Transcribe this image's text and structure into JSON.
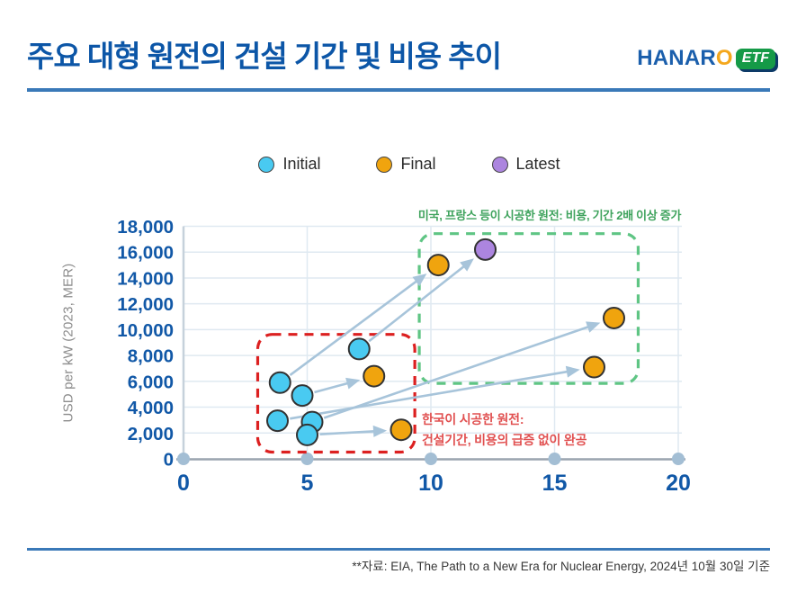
{
  "header": {
    "title": "주요 대형 원전의 건설 기간 및 비용 추이",
    "logo": {
      "brand_prefix": "HANAR",
      "brand_suffix": "O",
      "badge": "ETF"
    }
  },
  "legend": {
    "items": [
      {
        "label": "Initial",
        "color": "#49CAF1"
      },
      {
        "label": "Final",
        "color": "#F0A40E"
      },
      {
        "label": "Latest",
        "color": "#AC85DF"
      }
    ]
  },
  "chart_data": {
    "type": "scatter",
    "title": "",
    "xlabel": "",
    "ylabel": "USD per kW (2023, MER)",
    "xlim": [
      0,
      20
    ],
    "ylim": [
      0,
      18000
    ],
    "x_ticks": [
      0,
      5,
      10,
      15,
      20
    ],
    "y_ticks": [
      0,
      2000,
      4000,
      6000,
      8000,
      10000,
      12000,
      14000,
      16000,
      18000
    ],
    "grid": true,
    "legend_position": "top-center",
    "series": [
      {
        "name": "Initial",
        "color": "#49CAF1",
        "points": [
          [
            3.9,
            5900
          ],
          [
            4.8,
            4900
          ],
          [
            3.8,
            2950
          ],
          [
            5.2,
            2850
          ],
          [
            5.0,
            1850
          ],
          [
            7.1,
            8500
          ]
        ]
      },
      {
        "name": "Final",
        "color": "#F0A40E",
        "points": [
          [
            7.7,
            6400
          ],
          [
            8.8,
            2250
          ],
          [
            10.3,
            15000
          ],
          [
            16.6,
            7100
          ],
          [
            17.4,
            10900
          ]
        ]
      },
      {
        "name": "Latest",
        "color": "#AC85DF",
        "points": [
          [
            12.2,
            16200
          ]
        ]
      }
    ],
    "arrows": [
      {
        "from": [
          3.9,
          5900
        ],
        "to": [
          10.3,
          15000
        ]
      },
      {
        "from": [
          7.1,
          8500
        ],
        "to": [
          12.2,
          16200
        ]
      },
      {
        "from": [
          4.8,
          4900
        ],
        "to": [
          7.7,
          6400
        ]
      },
      {
        "from": [
          5.2,
          2850
        ],
        "to": [
          17.4,
          10900
        ]
      },
      {
        "from": [
          3.8,
          2950
        ],
        "to": [
          16.6,
          7100
        ]
      },
      {
        "from": [
          5.0,
          1850
        ],
        "to": [
          8.8,
          2250
        ]
      }
    ],
    "boxes": [
      {
        "id": "korea-box",
        "color": "#DC2020",
        "x": [
          3.0,
          9.35
        ],
        "y": [
          520,
          9630
        ]
      },
      {
        "id": "overseas-box",
        "color": "#5FC584",
        "x": [
          9.53,
          18.38
        ],
        "y": [
          5840,
          17430
        ]
      }
    ],
    "annotations": {
      "overseas": {
        "text": "미국, 프랑스 등이 시공한 원전: 비용, 기간 2배 이상 증가",
        "color": "#3FA35D"
      },
      "korea": {
        "line1": "한국이 시공한 원전:",
        "line2": "건설기간, 비용의 급증 없이 완공",
        "color": "#E15050"
      }
    },
    "colors": {
      "grid": "#DFE9F1",
      "x_axis": "#9AA4AF",
      "y_axis": "#C6D1DB",
      "tick_dots": "#A3BED4",
      "arrows": "#A7C4DA",
      "tick_labels": "#1158A7",
      "point_stroke": "#333333"
    }
  },
  "footer": {
    "source": "**자료: EIA, The Path to a New Era for Nuclear Energy, 2024년 10월 30일 기준"
  }
}
